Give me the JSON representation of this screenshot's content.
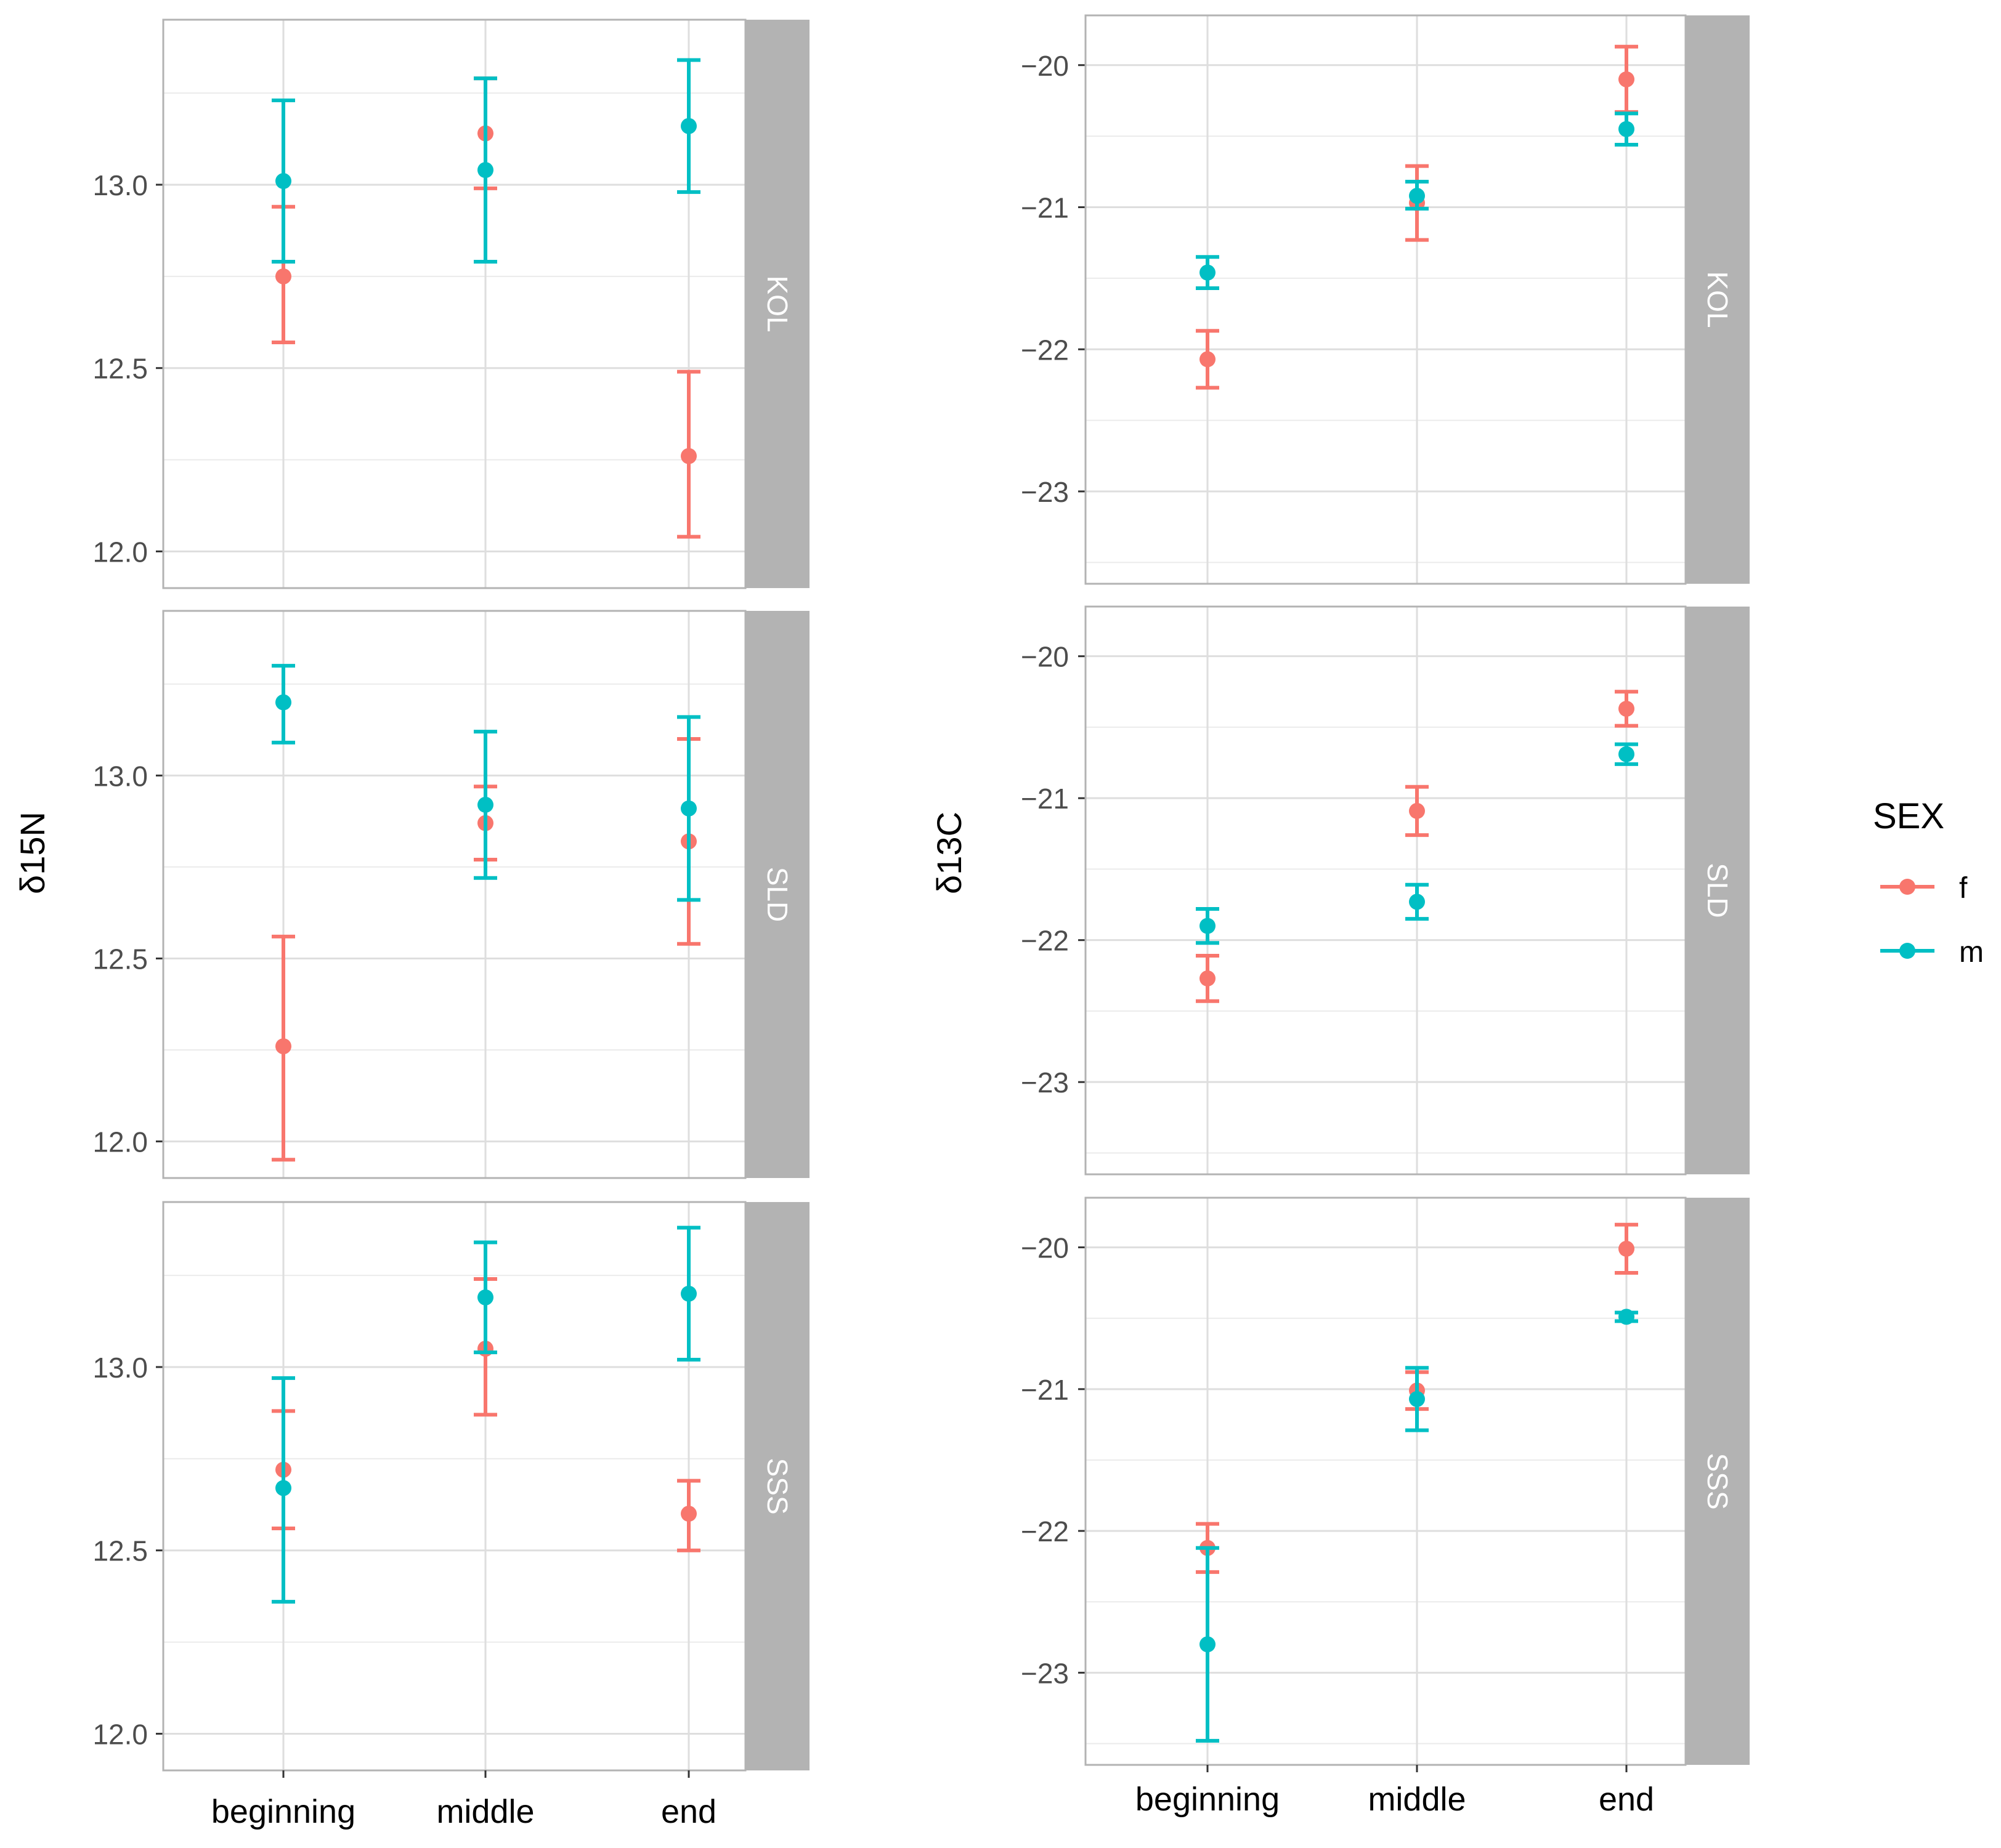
{
  "chart_data": {
    "type": "scatter",
    "subtype": "point-errorbar, faceted",
    "categories": [
      "beginning",
      "middle",
      "end"
    ],
    "legend": {
      "title": "SEX",
      "placement": "right",
      "items": [
        {
          "name": "f",
          "color": "#F8766D"
        },
        {
          "name": "m",
          "color": "#00BFC4"
        }
      ]
    },
    "panels_left": {
      "ylabel": "δ15N",
      "ylim": [
        11.9,
        13.45
      ],
      "ticks": [
        12.0,
        12.5,
        13.0
      ],
      "tick_labels": [
        "12.0",
        "12.5",
        "13.0"
      ],
      "facets": [
        {
          "strip": "KOL",
          "series": [
            {
              "name": "f",
              "mean": [
                12.75,
                13.14,
                12.26
              ],
              "lo": [
                12.57,
                12.99,
                12.04
              ],
              "hi": [
                12.94,
                13.29,
                12.49
              ]
            },
            {
              "name": "m",
              "mean": [
                13.01,
                13.04,
                13.16
              ],
              "lo": [
                12.79,
                12.79,
                12.98
              ],
              "hi": [
                13.23,
                13.29,
                13.34
              ]
            }
          ]
        },
        {
          "strip": "SLD",
          "series": [
            {
              "name": "f",
              "mean": [
                12.26,
                12.87,
                12.82
              ],
              "lo": [
                11.95,
                12.77,
                12.54
              ],
              "hi": [
                12.56,
                12.97,
                13.1
              ]
            },
            {
              "name": "m",
              "mean": [
                13.2,
                12.92,
                12.91
              ],
              "lo": [
                13.09,
                12.72,
                12.66
              ],
              "hi": [
                13.3,
                13.12,
                13.16
              ]
            }
          ]
        },
        {
          "strip": "SSS",
          "series": [
            {
              "name": "f",
              "mean": [
                12.72,
                13.05,
                12.6
              ],
              "lo": [
                12.56,
                12.87,
                12.5
              ],
              "hi": [
                12.88,
                13.24,
                12.69
              ]
            },
            {
              "name": "m",
              "mean": [
                12.67,
                13.19,
                13.2
              ],
              "lo": [
                12.36,
                13.04,
                13.02
              ],
              "hi": [
                12.97,
                13.34,
                13.38
              ]
            }
          ]
        }
      ]
    },
    "panels_right": {
      "ylabel": "δ13C",
      "ylim": [
        -23.65,
        -19.65
      ],
      "ticks": [
        -23,
        -22,
        -21,
        -20
      ],
      "tick_labels": [
        "−23",
        "−22",
        "−21",
        "−20"
      ],
      "facets": [
        {
          "strip": "KOL",
          "series": [
            {
              "name": "f",
              "mean": [
                -22.07,
                -20.97,
                -20.1
              ],
              "lo": [
                -22.27,
                -21.23,
                -20.33
              ],
              "hi": [
                -21.87,
                -20.71,
                -19.87
              ]
            },
            {
              "name": "m",
              "mean": [
                -21.46,
                -20.92,
                -20.45
              ],
              "lo": [
                -21.57,
                -21.01,
                -20.56
              ],
              "hi": [
                -21.35,
                -20.82,
                -20.34
              ]
            }
          ]
        },
        {
          "strip": "SLD",
          "series": [
            {
              "name": "f",
              "mean": [
                -22.27,
                -21.09,
                -20.37
              ],
              "lo": [
                -22.43,
                -21.26,
                -20.49
              ],
              "hi": [
                -22.11,
                -20.92,
                -20.25
              ]
            },
            {
              "name": "m",
              "mean": [
                -21.9,
                -21.73,
                -20.69
              ],
              "lo": [
                -22.02,
                -21.85,
                -20.76
              ],
              "hi": [
                -21.78,
                -21.61,
                -20.62
              ]
            }
          ]
        },
        {
          "strip": "SSS",
          "series": [
            {
              "name": "f",
              "mean": [
                -22.12,
                -21.01,
                -20.01
              ],
              "lo": [
                -22.29,
                -21.14,
                -20.18
              ],
              "hi": [
                -21.95,
                -20.88,
                -19.84
              ]
            },
            {
              "name": "m",
              "mean": [
                -22.8,
                -21.07,
                -20.49
              ],
              "lo": [
                -23.48,
                -21.29,
                -20.52
              ],
              "hi": [
                -22.12,
                -20.85,
                -20.46
              ]
            }
          ]
        }
      ]
    }
  }
}
